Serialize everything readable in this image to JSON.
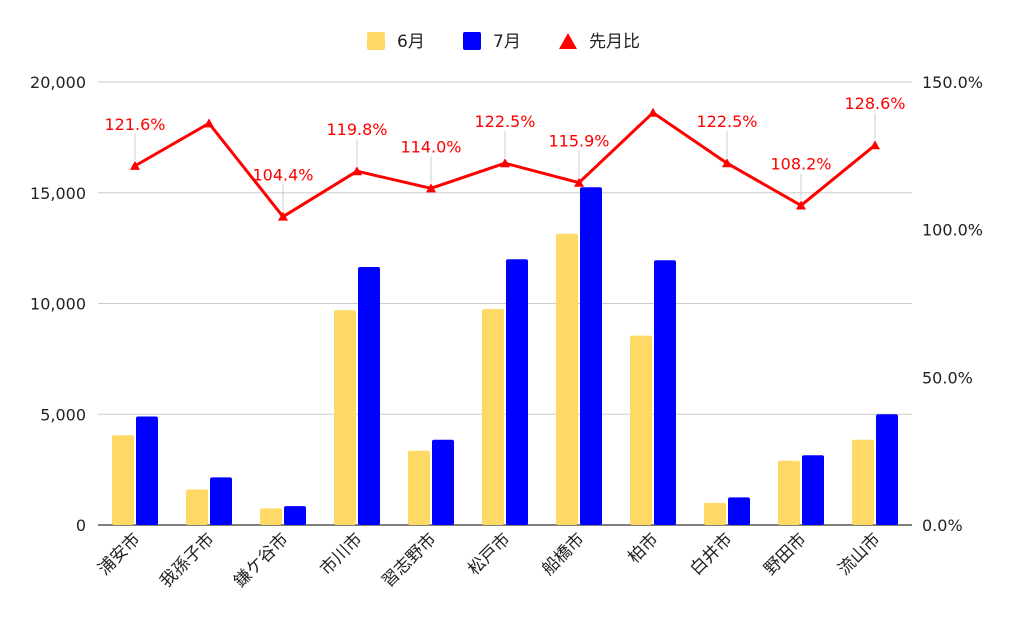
{
  "chart_data": {
    "type": "bar",
    "categories": [
      "浦安市",
      "我孫子市",
      "鎌ケ谷市",
      "市川市",
      "習志野市",
      "松戸市",
      "船橋市",
      "柏市",
      "白井市",
      "野田市",
      "流山市"
    ],
    "series": [
      {
        "name": "6月",
        "type": "bar",
        "axis": "left",
        "color": "#FFD966",
        "values": [
          4050,
          1600,
          750,
          9700,
          3350,
          9750,
          13150,
          8550,
          1000,
          2900,
          3850
        ]
      },
      {
        "name": "7月",
        "type": "bar",
        "axis": "left",
        "color": "#0000FF",
        "values": [
          4900,
          2150,
          850,
          11650,
          3850,
          12000,
          15250,
          11950,
          1250,
          3150,
          5000
        ]
      },
      {
        "name": "先月比",
        "type": "line",
        "axis": "right",
        "color": "#FF0000",
        "marker": "triangle",
        "values": [
          121.6,
          136.0,
          104.4,
          119.8,
          114.0,
          122.5,
          115.9,
          139.6,
          122.5,
          108.2,
          128.6
        ],
        "labels": [
          "121.6%",
          "",
          "104.4%",
          "119.8%",
          "114.0%",
          "122.5%",
          "115.9%",
          "",
          "122.5%",
          "108.2%",
          "128.6%"
        ]
      }
    ],
    "y_left": {
      "min": 0,
      "max": 20000,
      "ticks": [
        "0",
        "5,000",
        "10,000",
        "15,000",
        "20,000"
      ],
      "tick_values": [
        0,
        5000,
        10000,
        15000,
        20000
      ]
    },
    "y_right": {
      "min": 0,
      "max": 150,
      "ticks": [
        "0.0%",
        "50.0%",
        "100.0%",
        "150.0%"
      ],
      "tick_values": [
        0,
        50,
        100,
        150
      ]
    },
    "legend_position": "top",
    "grid": true
  }
}
